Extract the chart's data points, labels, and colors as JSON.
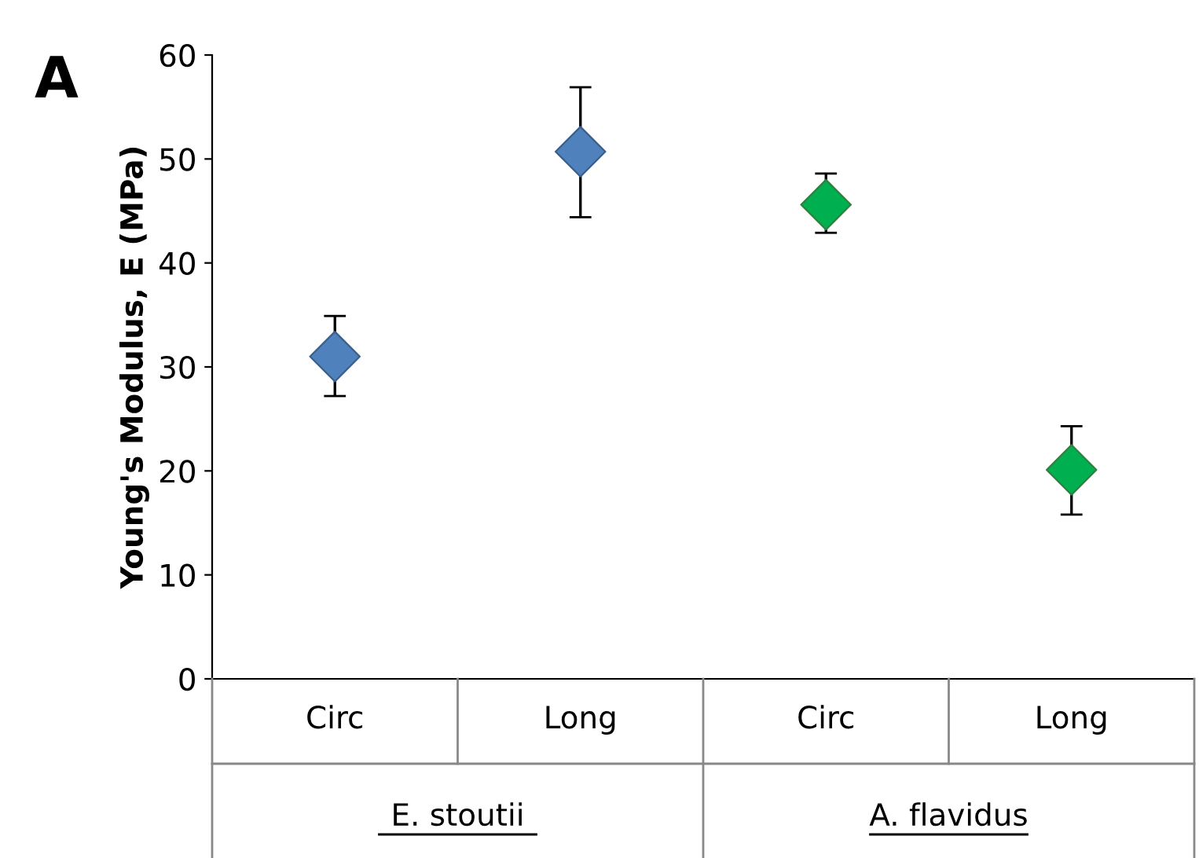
{
  "chart_data": {
    "type": "scatter",
    "ylabel": "Young's Modulus, E (MPa)",
    "categories": [
      "Circ",
      "Long",
      "Circ",
      "Long"
    ],
    "values": [
      31.0,
      50.7,
      45.6,
      20.1
    ],
    "errors": [
      [
        27.2,
        34.9
      ],
      [
        44.4,
        56.9
      ],
      [
        42.9,
        48.6
      ],
      [
        15.8,
        24.3
      ]
    ],
    "colors": [
      "#4f81bd",
      "#4f81bd",
      "#00b050",
      "#00b050"
    ],
    "marker": "diamond",
    "ylim": [
      0,
      60
    ],
    "yticks": [
      0,
      10,
      20,
      30,
      40,
      50,
      60
    ],
    "grid": false,
    "annotations": [
      "A",
      "E. stoutii",
      "A. flavidus"
    ]
  }
}
